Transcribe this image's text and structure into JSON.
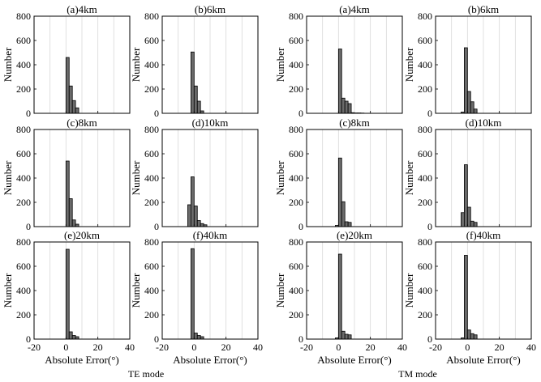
{
  "chart_data": {
    "type": "bar",
    "grid": "vertical",
    "panel_xlim": [
      -20,
      40
    ],
    "panel_ylim": [
      0,
      800
    ],
    "x_ticks": [
      -20,
      0,
      20,
      40
    ],
    "y_ticks": [
      0,
      200,
      400,
      600,
      800
    ],
    "bin_width": 2,
    "ylabel": "Number",
    "xlabel": "Absolute Error(°)",
    "groups": [
      {
        "label": "TE mode",
        "panels": [
          {
            "title": "(a)4km",
            "bins": [
              {
                "x": 0,
                "count": 460
              },
              {
                "x": 2,
                "count": 225
              },
              {
                "x": 4,
                "count": 105
              },
              {
                "x": 6,
                "count": 45
              }
            ]
          },
          {
            "title": "(b)6km",
            "bins": [
              {
                "x": -2,
                "count": 505
              },
              {
                "x": 0,
                "count": 225
              },
              {
                "x": 2,
                "count": 100
              },
              {
                "x": 4,
                "count": 20
              }
            ]
          },
          {
            "title": "(c)8km",
            "bins": [
              {
                "x": 0,
                "count": 540
              },
              {
                "x": 2,
                "count": 230
              },
              {
                "x": 4,
                "count": 55
              },
              {
                "x": 6,
                "count": 20
              }
            ]
          },
          {
            "title": "(d)10km",
            "bins": [
              {
                "x": -4,
                "count": 180
              },
              {
                "x": -2,
                "count": 410
              },
              {
                "x": 0,
                "count": 170
              },
              {
                "x": 2,
                "count": 50
              },
              {
                "x": 4,
                "count": 25
              },
              {
                "x": 6,
                "count": 15
              }
            ]
          },
          {
            "title": "(e)20km",
            "bins": [
              {
                "x": 0,
                "count": 740
              },
              {
                "x": 2,
                "count": 60
              },
              {
                "x": 4,
                "count": 30
              },
              {
                "x": 6,
                "count": 20
              }
            ]
          },
          {
            "title": "(f)40km",
            "bins": [
              {
                "x": -2,
                "count": 745
              },
              {
                "x": 0,
                "count": 50
              },
              {
                "x": 2,
                "count": 30
              },
              {
                "x": 4,
                "count": 20
              }
            ]
          }
        ]
      },
      {
        "label": "TM mode",
        "panels": [
          {
            "title": "(a)4km",
            "bins": [
              {
                "x": 0,
                "count": 530
              },
              {
                "x": 2,
                "count": 125
              },
              {
                "x": 4,
                "count": 100
              },
              {
                "x": 6,
                "count": 80
              },
              {
                "x": 8,
                "count": 5
              },
              {
                "x": 10,
                "count": 3
              },
              {
                "x": 12,
                "count": 3
              },
              {
                "x": 14,
                "count": 2
              }
            ]
          },
          {
            "title": "(b)6km",
            "bins": [
              {
                "x": -4,
                "count": 10
              },
              {
                "x": -2,
                "count": 540
              },
              {
                "x": 0,
                "count": 180
              },
              {
                "x": 2,
                "count": 95
              },
              {
                "x": 4,
                "count": 35
              }
            ]
          },
          {
            "title": "(c)8km",
            "bins": [
              {
                "x": -2,
                "count": 10
              },
              {
                "x": 0,
                "count": 565
              },
              {
                "x": 2,
                "count": 205
              },
              {
                "x": 4,
                "count": 40
              },
              {
                "x": 6,
                "count": 35
              }
            ]
          },
          {
            "title": "(d)10km",
            "bins": [
              {
                "x": -4,
                "count": 115
              },
              {
                "x": -2,
                "count": 510
              },
              {
                "x": 0,
                "count": 160
              },
              {
                "x": 2,
                "count": 45
              },
              {
                "x": 4,
                "count": 35
              }
            ]
          },
          {
            "title": "(e)20km",
            "bins": [
              {
                "x": -2,
                "count": 10
              },
              {
                "x": 0,
                "count": 700
              },
              {
                "x": 2,
                "count": 65
              },
              {
                "x": 4,
                "count": 40
              },
              {
                "x": 6,
                "count": 35
              }
            ]
          },
          {
            "title": "(f)40km",
            "bins": [
              {
                "x": -4,
                "count": 10
              },
              {
                "x": -2,
                "count": 690
              },
              {
                "x": 0,
                "count": 75
              },
              {
                "x": 2,
                "count": 45
              },
              {
                "x": 4,
                "count": 35
              }
            ]
          }
        ]
      }
    ]
  }
}
